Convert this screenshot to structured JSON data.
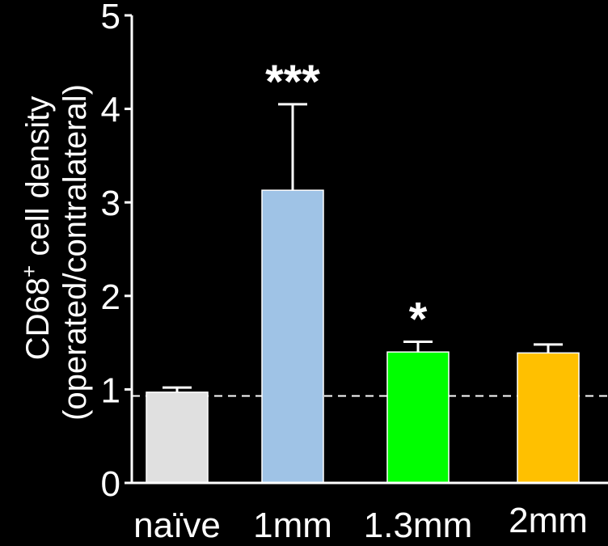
{
  "chart_data": {
    "type": "bar",
    "categories": [
      "naïve",
      "1mm",
      "1.3mm",
      "2mm"
    ],
    "values": [
      0.97,
      3.13,
      1.4,
      1.39
    ],
    "error_upper": [
      1.02,
      4.05,
      1.51,
      1.48
    ],
    "significance": [
      "",
      "***",
      "*",
      ""
    ],
    "colors": [
      "#e0e0e0",
      "#9fc3e6",
      "#00ff00",
      "#ffc000"
    ],
    "ylabel_line1": "CD68",
    "ylabel_superscript": "+",
    "ylabel_line1_rest": " cell density",
    "ylabel_line2": "(operated/contralateral)",
    "ylim": [
      0,
      5
    ],
    "yticks": [
      "0",
      "1",
      "2",
      "3",
      "4",
      "5"
    ],
    "reference_line": 0.93,
    "background": "#000000",
    "axis_color": "#ffffff"
  }
}
